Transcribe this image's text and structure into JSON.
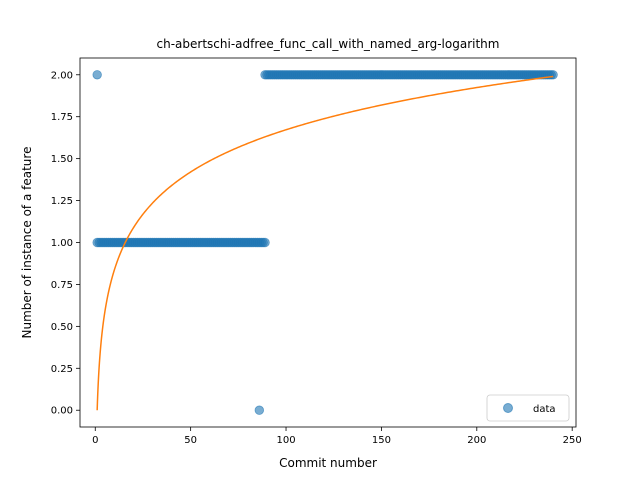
{
  "chart_data": {
    "type": "scatter",
    "title": "ch-abertschi-adfree_func_call_with_named_arg-logarithm",
    "xlabel": "Commit number",
    "ylabel": "Number of instance of a feature",
    "xlim": [
      -8,
      252
    ],
    "ylim": [
      -0.1,
      2.1
    ],
    "xticks": [
      0,
      50,
      100,
      150,
      200,
      250
    ],
    "yticks": [
      0.0,
      0.25,
      0.5,
      0.75,
      1.0,
      1.25,
      1.5,
      1.75,
      2.0
    ],
    "xtick_labels": [
      "0",
      "50",
      "100",
      "150",
      "200",
      "250"
    ],
    "ytick_labels": [
      "0.00",
      "0.25",
      "0.50",
      "0.75",
      "1.00",
      "1.25",
      "1.50",
      "1.75",
      "2.00"
    ],
    "legend": {
      "position": "lower-right",
      "entries": [
        "data"
      ]
    },
    "series": [
      {
        "name": "data",
        "kind": "scatter",
        "color": "#1f77b4",
        "points": [
          {
            "x": 1,
            "y": 2
          },
          {
            "x": 86,
            "y": 0
          },
          {
            "x_range": [
              1,
              89
            ],
            "y": 1
          },
          {
            "x_range": [
              89,
              240
            ],
            "y": 2
          }
        ]
      },
      {
        "kind": "line",
        "color": "#ff7f0e",
        "function": "logarithm",
        "x_range": [
          1,
          240
        ],
        "y_start": 0.0,
        "y_end": 1.99
      }
    ]
  }
}
